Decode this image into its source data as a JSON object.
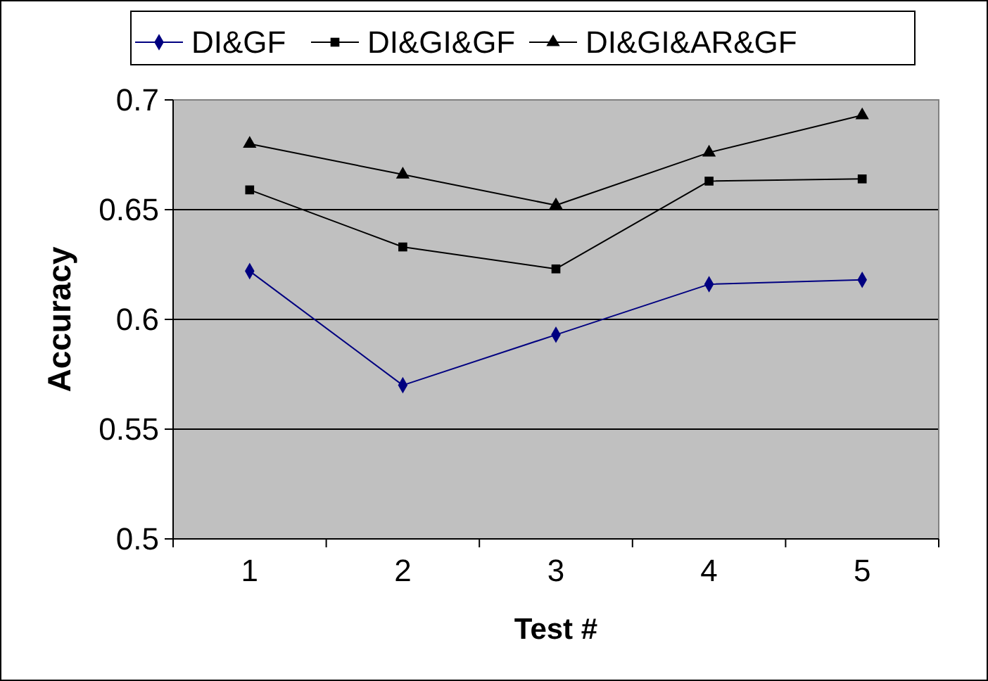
{
  "chart_data": {
    "type": "line",
    "xlabel": "Test #",
    "ylabel": "Accuracy",
    "categories": [
      "1",
      "2",
      "3",
      "4",
      "5"
    ],
    "series": [
      {
        "name": "DI&GF",
        "color": "#000080",
        "marker": "diamond",
        "values": [
          0.622,
          0.57,
          0.593,
          0.616,
          0.618
        ]
      },
      {
        "name": "DI&GI&GF",
        "color": "#000000",
        "marker": "square",
        "values": [
          0.659,
          0.633,
          0.623,
          0.663,
          0.664
        ]
      },
      {
        "name": "DI&GI&AR&GF",
        "color": "#000000",
        "marker": "triangle",
        "values": [
          0.68,
          0.666,
          0.652,
          0.676,
          0.693
        ]
      }
    ],
    "ylim": [
      0.5,
      0.7
    ],
    "yticks": [
      0.5,
      0.55,
      0.6,
      0.65,
      0.7
    ],
    "grid": "y",
    "legend": "top"
  }
}
